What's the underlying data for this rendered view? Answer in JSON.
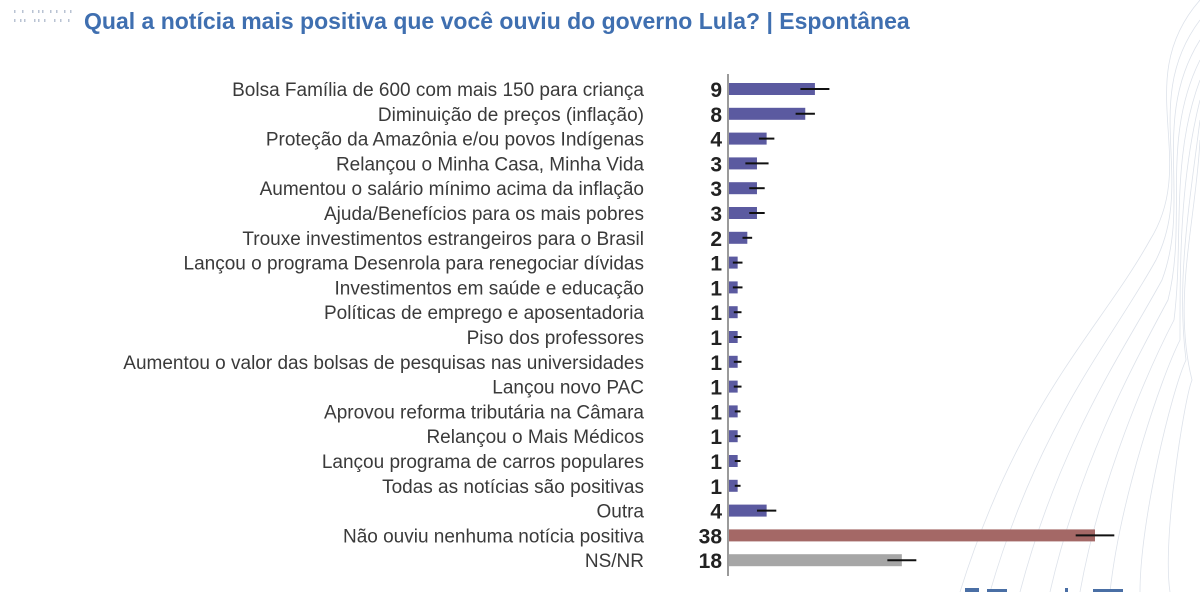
{
  "title": "Qual a notícia mais positiva que você ouviu do governo Lula? | Espontânea",
  "colors": {
    "title": "#3f6fb0",
    "bar_main": "#5b5aa0",
    "bar_none": "#a46866",
    "bar_nsnr": "#a6a6a6",
    "error": "#111111",
    "axis": "#9a9a9a"
  },
  "chart_data": {
    "type": "bar",
    "orientation": "horizontal",
    "title": "Qual a notícia mais positiva que você ouviu do governo Lula? | Espontânea",
    "categories": [
      "Bolsa Família de 600 com mais 150 para criança",
      "Diminuição de preços (inflação)",
      "Proteção da Amazônia e/ou povos Indígenas",
      "Relançou o Minha Casa, Minha Vida",
      "Aumentou o salário mínimo acima da inflação",
      "Ajuda/Benefícios para os mais pobres",
      "Trouxe investimentos estrangeiros para o Brasil",
      "Lançou o programa Desenrola para renegociar dívidas",
      "Investimentos em saúde e educação",
      "Políticas de emprego e aposentadoria",
      "Piso dos professores",
      "Aumentou o valor das bolsas de pesquisas nas universidades",
      "Lançou novo PAC",
      "Aprovou reforma tributária na Câmara",
      "Relançou o Mais Médicos",
      "Lançou programa de carros populares",
      "Todas as notícias são positivas",
      "Outra",
      "Não ouviu nenhuma notícia positiva",
      "NS/NR"
    ],
    "values": [
      9,
      8,
      4,
      3,
      3,
      3,
      2,
      1,
      1,
      1,
      1,
      1,
      1,
      1,
      1,
      1,
      1,
      4,
      38,
      18
    ],
    "labels": [
      "9",
      "8",
      "4",
      "3",
      "3",
      "3",
      "2",
      "1",
      "1",
      "1",
      "1",
      "1",
      "1",
      "1",
      "1",
      "1",
      "1",
      "4",
      "38",
      "18"
    ],
    "error_margin": [
      1.5,
      1.0,
      0.8,
      1.2,
      0.8,
      0.8,
      0.5,
      0.5,
      0.5,
      0.4,
      0.4,
      0.4,
      0.4,
      0.3,
      0.3,
      0.3,
      0.3,
      1.0,
      2.0,
      1.5
    ],
    "bar_colors": [
      "#5b5aa0",
      "#5b5aa0",
      "#5b5aa0",
      "#5b5aa0",
      "#5b5aa0",
      "#5b5aa0",
      "#5b5aa0",
      "#5b5aa0",
      "#5b5aa0",
      "#5b5aa0",
      "#5b5aa0",
      "#5b5aa0",
      "#5b5aa0",
      "#5b5aa0",
      "#5b5aa0",
      "#5b5aa0",
      "#5b5aa0",
      "#5b5aa0",
      "#a46866",
      "#a6a6a6"
    ],
    "xlim": [
      0,
      44
    ],
    "grid": false,
    "legend": "none"
  }
}
